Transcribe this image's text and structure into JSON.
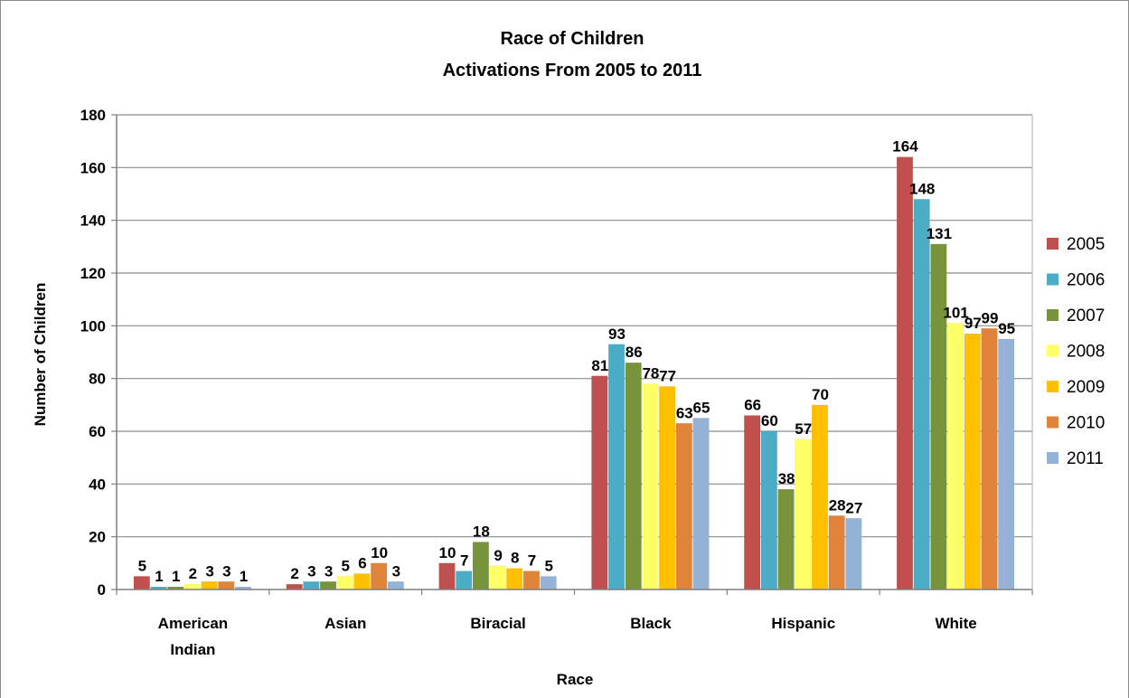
{
  "chart_data": {
    "type": "bar",
    "title": "Race of Children",
    "subtitle": "Activations From 2005 to 2011",
    "xlabel": "Race",
    "ylabel": "Number of Children",
    "ylim": [
      0,
      180
    ],
    "yticks": [
      0,
      20,
      40,
      60,
      80,
      100,
      120,
      140,
      160,
      180
    ],
    "grid": true,
    "legend_position": "right",
    "categories": [
      "American Indian",
      "Asian",
      "Biracial",
      "Black",
      "Hispanic",
      "White"
    ],
    "series": [
      {
        "name": "2005",
        "color": "#c0504d",
        "values": [
          5,
          2,
          10,
          81,
          66,
          164
        ]
      },
      {
        "name": "2006",
        "color": "#4bacc6",
        "values": [
          1,
          3,
          7,
          93,
          60,
          148
        ]
      },
      {
        "name": "2007",
        "color": "#77933c",
        "values": [
          1,
          3,
          18,
          86,
          38,
          131
        ]
      },
      {
        "name": "2008",
        "color": "#ffff66",
        "values": [
          2,
          5,
          9,
          78,
          57,
          101
        ]
      },
      {
        "name": "2009",
        "color": "#ffc000",
        "values": [
          3,
          6,
          8,
          77,
          70,
          97
        ]
      },
      {
        "name": "2010",
        "color": "#e0843c",
        "values": [
          3,
          10,
          7,
          63,
          28,
          99
        ]
      },
      {
        "name": "2011",
        "color": "#95b3d7",
        "values": [
          1,
          3,
          5,
          65,
          27,
          95
        ]
      }
    ]
  }
}
